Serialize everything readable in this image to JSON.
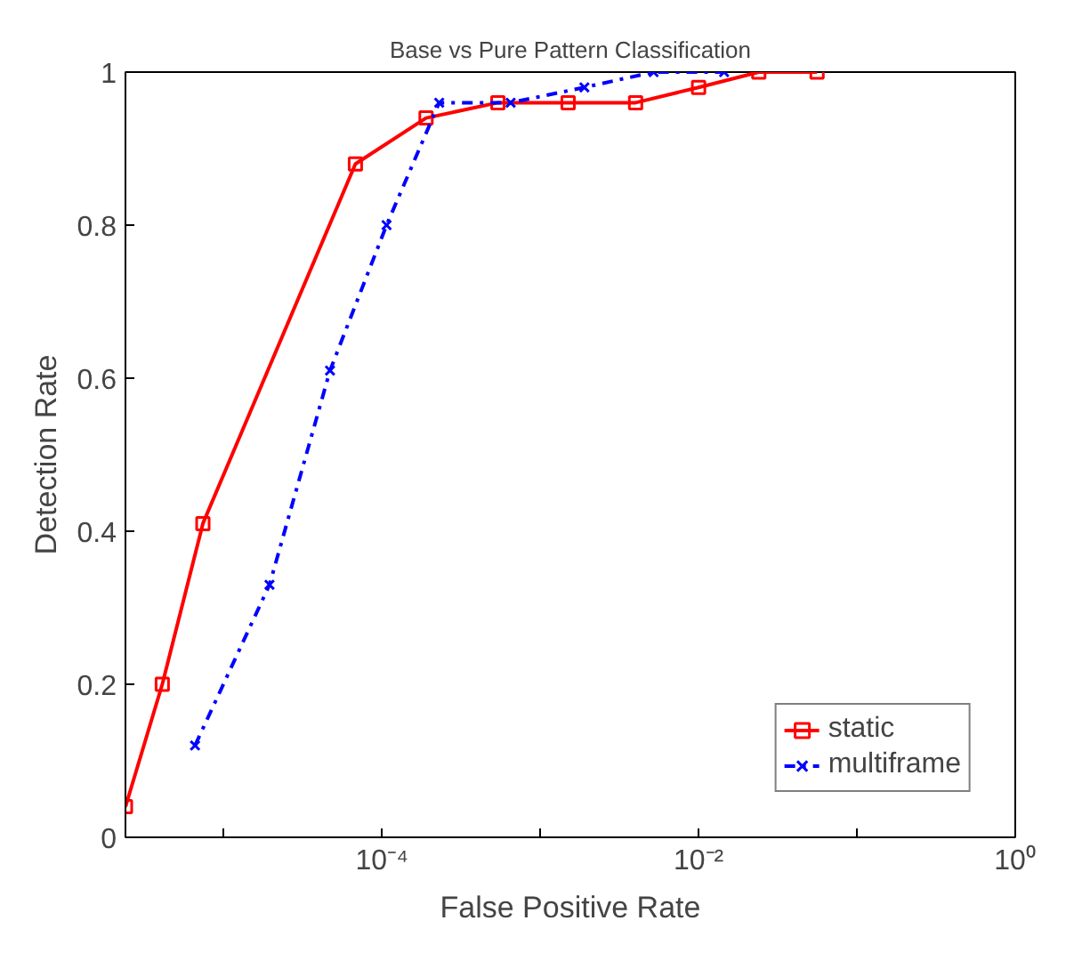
{
  "chart_data": {
    "type": "line",
    "title": "Base vs Pure Pattern Classification",
    "xlabel": "False Positive Rate",
    "ylabel": "Detection Rate",
    "log": "x",
    "grid": false,
    "legend": "bottom right",
    "xlim": [
      2.4e-06,
      1
    ],
    "ylim": [
      0,
      1
    ],
    "xticks": [
      {
        "value": 1e-05,
        "label": null
      },
      {
        "value": 0.0001,
        "label": "10⁻⁴"
      },
      {
        "value": 0.001,
        "label": null
      },
      {
        "value": 0.01,
        "label": "10⁻²"
      },
      {
        "value": 0.1,
        "label": null
      },
      {
        "value": 1,
        "label": "10⁰"
      }
    ],
    "yticks": [
      {
        "value": 0,
        "label": "0"
      },
      {
        "value": 0.2,
        "label": "0.2"
      },
      {
        "value": 0.4,
        "label": "0.4"
      },
      {
        "value": 0.6,
        "label": "0.6"
      },
      {
        "value": 0.8,
        "label": "0.8"
      },
      {
        "value": 1,
        "label": "1"
      }
    ],
    "series": [
      {
        "name": "static",
        "color": "#ff0000",
        "marker": "square",
        "line_style": "solid",
        "x": [
          2.4e-06,
          4.1e-06,
          7.4e-06,
          6.8e-05,
          0.00019,
          0.00054,
          0.0015,
          0.004,
          0.01,
          0.024,
          0.056
        ],
        "values": [
          0.04,
          0.2,
          0.41,
          0.88,
          0.94,
          0.96,
          0.96,
          0.96,
          0.98,
          1.0,
          1.0
        ]
      },
      {
        "name": "multiframe",
        "color": "#0000ff",
        "marker": "cross",
        "line_style": "dashdot",
        "x": [
          6.6e-06,
          1.95e-05,
          4.7e-05,
          0.000107,
          0.00023,
          0.00065,
          0.0019,
          0.0052,
          0.0145
        ],
        "values": [
          0.12,
          0.33,
          0.61,
          0.8,
          0.96,
          0.96,
          0.98,
          1.0,
          1.0
        ]
      }
    ]
  }
}
